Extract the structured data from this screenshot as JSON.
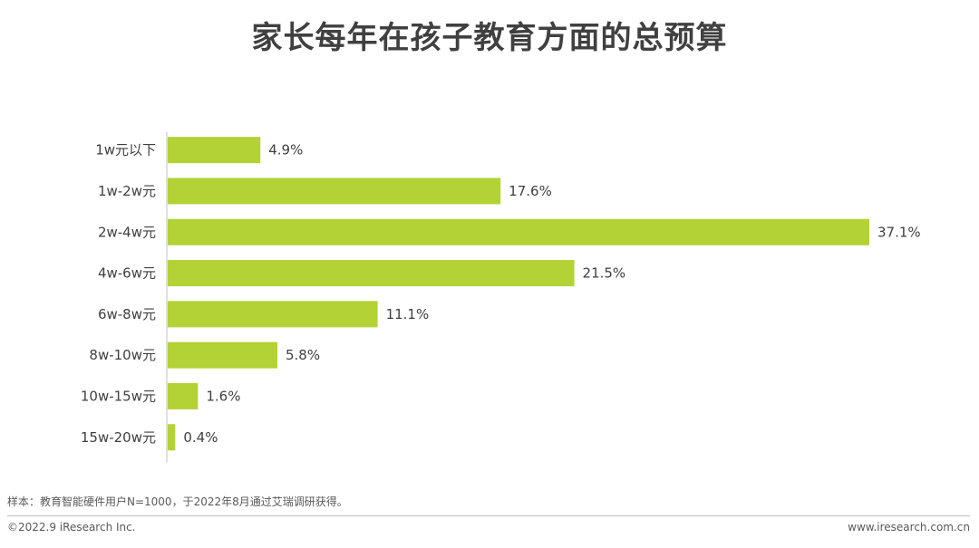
{
  "colors": {
    "bar": "#b2d235",
    "text": "#404040",
    "axis": "#bfbfbf"
  },
  "chart_data": {
    "type": "bar",
    "orientation": "horizontal",
    "title": "家长每年在孩子教育方面的总预算",
    "categories": [
      "1w元以下",
      "1w-2w元",
      "2w-4w元",
      "4w-6w元",
      "6w-8w元",
      "8w-10w元",
      "10w-15w元",
      "15w-20w元"
    ],
    "values": [
      4.9,
      17.6,
      37.1,
      21.5,
      11.1,
      5.8,
      1.6,
      0.4
    ],
    "data_labels": [
      "4.9%",
      "17.6%",
      "37.1%",
      "21.5%",
      "11.1%",
      "5.8%",
      "1.6%",
      "0.4%"
    ],
    "xlim": [
      0,
      37.1
    ],
    "grid": false,
    "legend": "none"
  },
  "note": "样本：教育智能硬件用户N=1000，于2022年8月通过艾瑞调研获得。",
  "footer": {
    "copyright": "©2022.9 iResearch Inc.",
    "website": "www.iresearch.com.cn"
  }
}
